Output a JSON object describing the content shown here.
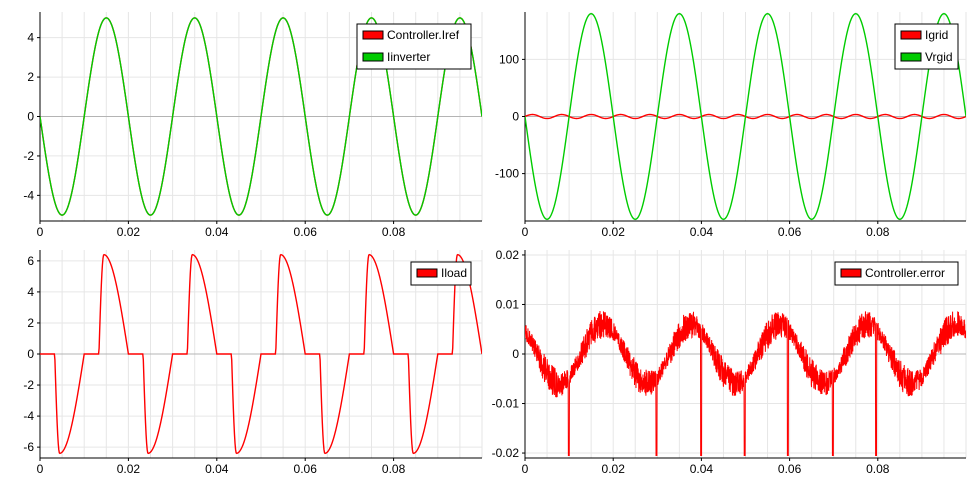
{
  "chart_data": [
    {
      "type": "line",
      "xlim": [
        0,
        0.1
      ],
      "ylim": [
        -5.3,
        5.3
      ],
      "xticks": [
        0,
        0.02,
        0.04,
        0.06,
        0.08
      ],
      "xtick_labels": [
        "0",
        "0.02",
        "0.04",
        "0.06",
        "0.08"
      ],
      "yticks": [
        -4,
        -2,
        0,
        2,
        4
      ],
      "ytick_labels": [
        "-4",
        "-2",
        "0",
        "2",
        "4"
      ],
      "grid": true,
      "legend_position": "top-right",
      "series": [
        {
          "name": "Controller.Iref",
          "color": "#ff0000",
          "kind": "sine",
          "amplitude": 5.0,
          "frequency_hz": 50,
          "phase_deg": 180
        },
        {
          "name": "Iinverter",
          "color": "#00cc00",
          "kind": "sine",
          "amplitude": 5.0,
          "frequency_hz": 50,
          "phase_deg": 180
        }
      ]
    },
    {
      "type": "line",
      "xlim": [
        0,
        0.1
      ],
      "ylim": [
        -183,
        183
      ],
      "xticks": [
        0,
        0.02,
        0.04,
        0.06,
        0.08
      ],
      "xtick_labels": [
        "0",
        "0.02",
        "0.04",
        "0.06",
        "0.08"
      ],
      "yticks": [
        -100,
        0,
        100
      ],
      "ytick_labels": [
        "-100",
        "0",
        "100"
      ],
      "grid": true,
      "legend_position": "top-right",
      "series": [
        {
          "name": "Igrid",
          "color": "#ff0000",
          "kind": "sine",
          "amplitude": 3.5,
          "frequency_hz": 150,
          "phase_deg": 0
        },
        {
          "name": "Vrgid",
          "color": "#00cc00",
          "kind": "sine",
          "amplitude": 180,
          "frequency_hz": 50,
          "phase_deg": 180
        }
      ]
    },
    {
      "type": "line",
      "xlim": [
        0,
        0.1
      ],
      "ylim": [
        -6.7,
        6.7
      ],
      "xticks": [
        0,
        0.02,
        0.04,
        0.06,
        0.08
      ],
      "xtick_labels": [
        "0",
        "0.02",
        "0.04",
        "0.06",
        "0.08"
      ],
      "yticks": [
        -6,
        -4,
        -2,
        0,
        2,
        4,
        6
      ],
      "ytick_labels": [
        "-6",
        "-4",
        "-2",
        "0",
        "2",
        "4",
        "6"
      ],
      "grid": true,
      "legend_position": "top-right",
      "series": [
        {
          "name": "Iload",
          "color": "#ff0000",
          "kind": "rectifier_pulse",
          "amplitude": 6.4,
          "frequency_hz": 50,
          "phase_deg": 180,
          "conduction_start_deg": 60,
          "peak_deg": 80
        }
      ]
    },
    {
      "type": "line",
      "xlim": [
        0,
        0.1
      ],
      "ylim": [
        -0.021,
        0.021
      ],
      "xticks": [
        0,
        0.02,
        0.04,
        0.06,
        0.08
      ],
      "xtick_labels": [
        "0",
        "0.02",
        "0.04",
        "0.06",
        "0.08"
      ],
      "yticks": [
        -0.02,
        -0.01,
        0,
        0.01,
        0.02
      ],
      "ytick_labels": [
        "-0.02",
        "-0.01",
        "0",
        "0.01",
        "0.02"
      ],
      "grid": true,
      "legend_position": "top-right",
      "series": [
        {
          "name": "Controller.error",
          "color": "#ff0000",
          "kind": "noisy_sine",
          "amplitude": 0.006,
          "frequency_hz": 50,
          "phase_deg": 130,
          "noise": 0.003,
          "spike_times": [
            0.0098,
            0.0297,
            0.0398,
            0.0497,
            0.0595,
            0.0697,
            0.0795
          ]
        }
      ]
    }
  ]
}
